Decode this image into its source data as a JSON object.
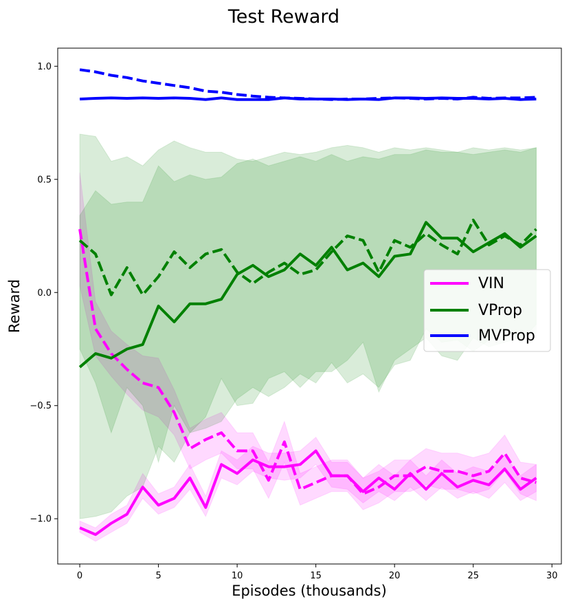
{
  "chart_data": {
    "type": "line",
    "title": "Test Reward",
    "xlabel": "Episodes (thousands)",
    "ylabel": "Reward",
    "xlim": [
      -1.4,
      30.6
    ],
    "ylim": [
      -1.2,
      1.08
    ],
    "xticks": [
      0,
      5,
      10,
      15,
      20,
      25,
      30
    ],
    "xtick_labels": [
      "0",
      "5",
      "10",
      "15",
      "20",
      "25",
      "30"
    ],
    "yticks": [
      -1.0,
      -0.5,
      0.0,
      0.5,
      1.0
    ],
    "ytick_labels": [
      "−1.0",
      "−0.5",
      "0.0",
      "0.5",
      "1.0"
    ],
    "grid": false,
    "legend_position": "right",
    "legend": [
      {
        "label": "VIN",
        "color": "#ff00ff"
      },
      {
        "label": "VProp",
        "color": "#008000"
      },
      {
        "label": "MVProp",
        "color": "#0000ff"
      }
    ],
    "x": [
      0,
      1,
      2,
      3,
      4,
      5,
      6,
      7,
      8,
      9,
      10,
      11,
      12,
      13,
      14,
      15,
      16,
      17,
      18,
      19,
      20,
      21,
      22,
      23,
      24,
      25,
      26,
      27,
      28,
      29
    ],
    "series": [
      {
        "name": "VIN",
        "style": "solid",
        "color": "#ff00ff",
        "values": [
          -1.04,
          -1.07,
          -1.02,
          -0.98,
          -0.86,
          -0.94,
          -0.91,
          -0.82,
          -0.95,
          -0.76,
          -0.8,
          -0.74,
          -0.77,
          -0.77,
          -0.76,
          -0.7,
          -0.81,
          -0.81,
          -0.88,
          -0.82,
          -0.87,
          -0.8,
          -0.87,
          -0.8,
          -0.86,
          -0.83,
          -0.85,
          -0.78,
          -0.87,
          -0.82
        ],
        "band_low": [
          -1.06,
          -1.1,
          -1.06,
          -1.02,
          -0.91,
          -0.98,
          -0.95,
          -0.87,
          -0.99,
          -0.82,
          -0.85,
          -0.79,
          -0.82,
          -0.83,
          -0.82,
          -0.76,
          -0.86,
          -0.87,
          -0.93,
          -0.88,
          -0.92,
          -0.86,
          -0.92,
          -0.86,
          -0.91,
          -0.88,
          -0.91,
          -0.84,
          -0.92,
          -0.88
        ],
        "band_high": [
          -1.01,
          -1.04,
          -0.98,
          -0.94,
          -0.8,
          -0.89,
          -0.86,
          -0.76,
          -0.9,
          -0.7,
          -0.74,
          -0.68,
          -0.71,
          -0.71,
          -0.7,
          -0.64,
          -0.75,
          -0.75,
          -0.82,
          -0.76,
          -0.81,
          -0.74,
          -0.81,
          -0.74,
          -0.8,
          -0.77,
          -0.79,
          -0.72,
          -0.81,
          -0.76
        ]
      },
      {
        "name": "VIN",
        "style": "dashed",
        "color": "#ff00ff",
        "values": [
          0.28,
          -0.16,
          -0.27,
          -0.34,
          -0.4,
          -0.42,
          -0.53,
          -0.69,
          -0.65,
          -0.62,
          -0.7,
          -0.7,
          -0.83,
          -0.66,
          -0.87,
          -0.84,
          -0.81,
          -0.81,
          -0.89,
          -0.86,
          -0.81,
          -0.81,
          -0.77,
          -0.79,
          -0.79,
          -0.81,
          -0.79,
          -0.71,
          -0.82,
          -0.84
        ],
        "band_low": [
          0.03,
          -0.28,
          -0.37,
          -0.45,
          -0.52,
          -0.55,
          -0.63,
          -0.78,
          -0.74,
          -0.71,
          -0.78,
          -0.78,
          -0.91,
          -0.75,
          -0.94,
          -0.91,
          -0.88,
          -0.88,
          -0.96,
          -0.93,
          -0.88,
          -0.88,
          -0.85,
          -0.87,
          -0.87,
          -0.89,
          -0.87,
          -0.79,
          -0.89,
          -0.92
        ],
        "band_high": [
          0.53,
          -0.04,
          -0.17,
          -0.23,
          -0.28,
          -0.29,
          -0.43,
          -0.6,
          -0.56,
          -0.53,
          -0.62,
          -0.62,
          -0.75,
          -0.57,
          -0.8,
          -0.77,
          -0.74,
          -0.74,
          -0.82,
          -0.79,
          -0.74,
          -0.74,
          -0.69,
          -0.71,
          -0.71,
          -0.73,
          -0.71,
          -0.63,
          -0.75,
          -0.76
        ]
      },
      {
        "name": "VProp",
        "style": "solid",
        "color": "#008000",
        "values": [
          -0.33,
          -0.27,
          -0.29,
          -0.25,
          -0.23,
          -0.06,
          -0.13,
          -0.05,
          -0.05,
          -0.03,
          0.08,
          0.12,
          0.07,
          0.1,
          0.17,
          0.12,
          0.2,
          0.1,
          0.13,
          0.07,
          0.16,
          0.17,
          0.31,
          0.24,
          0.24,
          0.18,
          0.22,
          0.26,
          0.2,
          0.25
        ],
        "band_low": [
          -1.0,
          -0.99,
          -0.97,
          -0.9,
          -0.86,
          -0.68,
          -0.75,
          -0.62,
          -0.6,
          -0.57,
          -0.47,
          -0.42,
          -0.46,
          -0.42,
          -0.36,
          -0.4,
          -0.31,
          -0.4,
          -0.36,
          -0.42,
          -0.32,
          -0.3,
          -0.16,
          -0.22,
          -0.21,
          -0.26,
          -0.21,
          -0.16,
          -0.22,
          -0.14
        ],
        "band_high": [
          0.34,
          0.45,
          0.39,
          0.4,
          0.4,
          0.56,
          0.49,
          0.52,
          0.5,
          0.51,
          0.57,
          0.59,
          0.56,
          0.58,
          0.6,
          0.58,
          0.61,
          0.58,
          0.6,
          0.59,
          0.61,
          0.61,
          0.63,
          0.62,
          0.62,
          0.61,
          0.62,
          0.63,
          0.62,
          0.64
        ]
      },
      {
        "name": "VProp",
        "style": "dashed",
        "color": "#008000",
        "values": [
          0.23,
          0.17,
          -0.01,
          0.11,
          -0.01,
          0.07,
          0.18,
          0.11,
          0.17,
          0.19,
          0.09,
          0.04,
          0.09,
          0.13,
          0.08,
          0.1,
          0.18,
          0.25,
          0.23,
          0.09,
          0.23,
          0.2,
          0.26,
          0.21,
          0.17,
          0.32,
          0.21,
          0.25,
          0.21,
          0.28
        ],
        "band_low": [
          -0.25,
          -0.4,
          -0.62,
          -0.42,
          -0.5,
          -0.75,
          -0.5,
          -0.62,
          -0.55,
          -0.38,
          -0.5,
          -0.49,
          -0.38,
          -0.35,
          -0.42,
          -0.35,
          -0.35,
          -0.3,
          -0.22,
          -0.44,
          -0.3,
          -0.25,
          -0.2,
          -0.28,
          -0.3,
          -0.2,
          -0.24,
          -0.22,
          -0.2,
          -0.18
        ],
        "band_high": [
          0.7,
          0.69,
          0.58,
          0.6,
          0.56,
          0.63,
          0.67,
          0.64,
          0.62,
          0.62,
          0.59,
          0.58,
          0.6,
          0.62,
          0.61,
          0.62,
          0.64,
          0.65,
          0.64,
          0.62,
          0.64,
          0.63,
          0.64,
          0.63,
          0.62,
          0.64,
          0.63,
          0.64,
          0.63,
          0.64
        ]
      },
      {
        "name": "MVProp",
        "style": "solid",
        "color": "#0000ff",
        "values": [
          0.855,
          0.858,
          0.86,
          0.858,
          0.86,
          0.858,
          0.86,
          0.858,
          0.853,
          0.86,
          0.853,
          0.853,
          0.853,
          0.86,
          0.855,
          0.855,
          0.855,
          0.853,
          0.855,
          0.853,
          0.86,
          0.86,
          0.858,
          0.86,
          0.858,
          0.858,
          0.855,
          0.858,
          0.853,
          0.855
        ]
      },
      {
        "name": "MVProp",
        "style": "dashed",
        "color": "#0000ff",
        "values": [
          0.985,
          0.975,
          0.96,
          0.95,
          0.935,
          0.925,
          0.915,
          0.905,
          0.89,
          0.885,
          0.875,
          0.868,
          0.863,
          0.86,
          0.858,
          0.855,
          0.853,
          0.855,
          0.855,
          0.858,
          0.86,
          0.858,
          0.855,
          0.858,
          0.855,
          0.863,
          0.858,
          0.86,
          0.86,
          0.863
        ]
      }
    ]
  }
}
